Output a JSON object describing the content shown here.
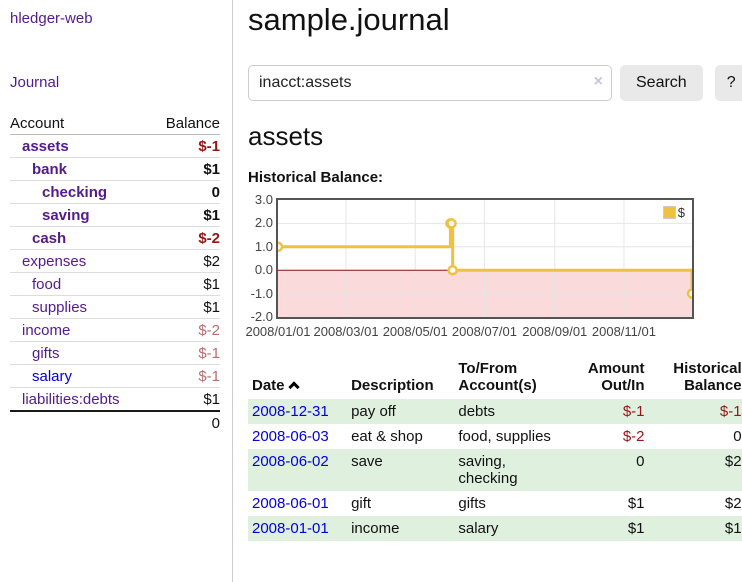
{
  "sidebar": {
    "app_title": "hledger-web",
    "journal_link": "Journal",
    "columns": {
      "account": "Account",
      "balance": "Balance"
    },
    "accounts": [
      {
        "name": "assets",
        "balance": "$-1"
      },
      {
        "name": "bank",
        "balance": "$1"
      },
      {
        "name": "checking",
        "balance": "0"
      },
      {
        "name": "saving",
        "balance": "$1"
      },
      {
        "name": "cash",
        "balance": "$-2"
      },
      {
        "name": "expenses",
        "balance": "$2"
      },
      {
        "name": "food",
        "balance": "$1"
      },
      {
        "name": "supplies",
        "balance": "$1"
      },
      {
        "name": "income",
        "balance": "$-2"
      },
      {
        "name": "gifts",
        "balance": "$-1"
      },
      {
        "name": "salary",
        "balance": "$-1"
      },
      {
        "name": "liabilities:debts",
        "balance": "$1"
      }
    ],
    "total": "0"
  },
  "main": {
    "title": "sample.journal",
    "search": {
      "value": "inacct:assets",
      "clear_icon": "×",
      "search_label": "Search",
      "help_label": "?"
    },
    "account_heading": "assets",
    "chart_title": "Historical Balance:"
  },
  "chart_data": {
    "type": "line",
    "step": true,
    "title": "Historical Balance:",
    "series": [
      {
        "name": "$",
        "points": [
          [
            "2008-01-01",
            1
          ],
          [
            "2008-06-01",
            2
          ],
          [
            "2008-06-02",
            2
          ],
          [
            "2008-06-03",
            0
          ],
          [
            "2008-12-31",
            -1
          ]
        ],
        "color": "#edc240"
      }
    ],
    "x_range": [
      "2008-01-01",
      "2008-12-31"
    ],
    "ylim": [
      -2,
      3
    ],
    "ytick_labels": [
      "3.0",
      "2.0",
      "1.0",
      "0.0",
      "-1.0",
      "-2.0"
    ],
    "xtick_labels": [
      "2008/01/01",
      "2008/03/01",
      "2008/05/01",
      "2008/07/01",
      "2008/09/01",
      "2008/11/01"
    ],
    "legend_position": "top-right",
    "grid": true,
    "colors": {
      "line": "#edc240",
      "negative_region": "#fadada",
      "zero_line": "#871515",
      "gridline": "#e6e6e6",
      "border": "#545454"
    }
  },
  "register": {
    "headers": {
      "date": "Date",
      "description": "Description",
      "tofrom": "To/From Account(s)",
      "amount": "Amount Out/In",
      "balance": "Historical Balance"
    },
    "transactions": [
      {
        "date": "2008-12-31",
        "description": "pay off",
        "tofrom": "debts",
        "amount": "$-1",
        "balance": "$-1"
      },
      {
        "date": "2008-06-03",
        "description": "eat & shop",
        "tofrom": "food, supplies",
        "amount": "$-2",
        "balance": "0"
      },
      {
        "date": "2008-06-02",
        "description": "save",
        "tofrom": "saving, checking",
        "amount": "0",
        "balance": "$2"
      },
      {
        "date": "2008-06-01",
        "description": "gift",
        "tofrom": "gifts",
        "amount": "$1",
        "balance": "$2"
      },
      {
        "date": "2008-01-01",
        "description": "income",
        "tofrom": "salary",
        "amount": "$1",
        "balance": "$1"
      }
    ]
  }
}
